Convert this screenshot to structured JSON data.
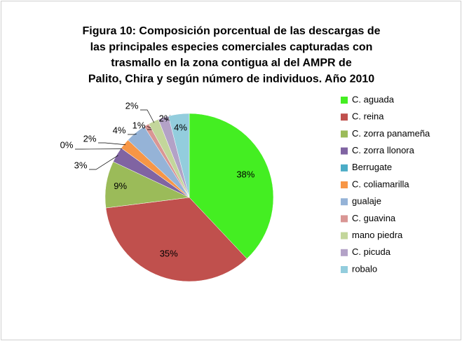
{
  "chart_data": {
    "type": "pie",
    "title": [
      "Figura 10: Composición porcentual de las descargas de",
      "las principales especies comerciales  capturadas con",
      "trasmallo en la zona contigua al del AMPR de",
      "Palito, Chira y según número de individuos. Año 2010"
    ],
    "categories": [
      "C. aguada",
      "C. reina",
      "C. zorra panameña",
      "C. zorra llonora",
      "Berrugate",
      "C. coliamarilla",
      "gualaje",
      "C. guavina",
      "mano piedra",
      "C. picuda",
      "robalo"
    ],
    "values": [
      38,
      35,
      9,
      3,
      0,
      2,
      4,
      1,
      2,
      2,
      4
    ],
    "value_labels": [
      "38%",
      "35%",
      "9%",
      "3%",
      "0%",
      "2%",
      "4%",
      "1%",
      "2%",
      "2%",
      "4%"
    ],
    "colors": [
      "#44ee22",
      "#c0504d",
      "#9bbb59",
      "#8064a2",
      "#4bacc6",
      "#f79646",
      "#95b3d7",
      "#d99694",
      "#c3d69b",
      "#b3a2c7",
      "#93cddd"
    ],
    "legend": "right"
  }
}
